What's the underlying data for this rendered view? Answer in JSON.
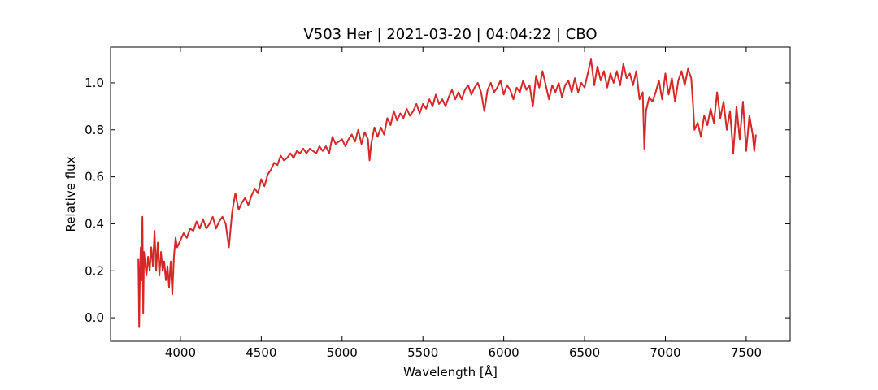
{
  "chart_data": {
    "type": "line",
    "title": "V503 Her | 2021-03-20 | 04:04:22 | CBO",
    "x_label": "Wavelength [Å]",
    "y_label": "Relative flux",
    "xlim": [
      3568,
      7772
    ],
    "ylim": [
      -0.1,
      1.152
    ],
    "xticks": [
      4000,
      4500,
      5000,
      5500,
      6000,
      6500,
      7000,
      7500
    ],
    "yticks": [
      {
        "value": 0,
        "label": "0.0"
      },
      {
        "value": 0.2,
        "label": "0.2"
      },
      {
        "value": 0.4,
        "label": "0.4"
      },
      {
        "value": 0.6,
        "label": "0.6"
      },
      {
        "value": 0.8,
        "label": "0.8"
      },
      {
        "value": 1,
        "label": "1.0"
      }
    ],
    "grid": false,
    "series": [
      {
        "color": "#d62728",
        "x": [
          3740,
          3745,
          3750,
          3755,
          3760,
          3765,
          3770,
          3775,
          3790,
          3800,
          3810,
          3820,
          3830,
          3840,
          3850,
          3860,
          3870,
          3880,
          3890,
          3900,
          3910,
          3920,
          3930,
          3940,
          3950,
          3960,
          3970,
          3980,
          4000,
          4020,
          4040,
          4060,
          4080,
          4100,
          4120,
          4140,
          4160,
          4180,
          4200,
          4220,
          4240,
          4260,
          4280,
          4300,
          4320,
          4340,
          4360,
          4380,
          4400,
          4420,
          4440,
          4460,
          4480,
          4500,
          4520,
          4540,
          4560,
          4580,
          4600,
          4620,
          4640,
          4660,
          4680,
          4700,
          4720,
          4740,
          4760,
          4780,
          4800,
          4820,
          4840,
          4860,
          4880,
          4900,
          4920,
          4940,
          4960,
          4980,
          5000,
          5020,
          5040,
          5060,
          5080,
          5100,
          5120,
          5140,
          5160,
          5170,
          5180,
          5200,
          5220,
          5240,
          5260,
          5280,
          5300,
          5320,
          5340,
          5360,
          5380,
          5400,
          5420,
          5440,
          5460,
          5480,
          5500,
          5520,
          5540,
          5560,
          5580,
          5600,
          5620,
          5640,
          5660,
          5680,
          5700,
          5720,
          5740,
          5760,
          5780,
          5800,
          5820,
          5840,
          5860,
          5880,
          5900,
          5920,
          5940,
          5960,
          5980,
          6000,
          6020,
          6040,
          6060,
          6080,
          6100,
          6120,
          6140,
          6160,
          6180,
          6200,
          6220,
          6240,
          6260,
          6280,
          6300,
          6320,
          6340,
          6360,
          6380,
          6400,
          6420,
          6440,
          6460,
          6480,
          6500,
          6520,
          6540,
          6560,
          6580,
          6600,
          6620,
          6640,
          6660,
          6680,
          6700,
          6720,
          6740,
          6760,
          6780,
          6800,
          6820,
          6840,
          6860,
          6870,
          6880,
          6900,
          6920,
          6940,
          6960,
          6980,
          7000,
          7020,
          7040,
          7060,
          7080,
          7100,
          7120,
          7140,
          7160,
          7170,
          7180,
          7200,
          7220,
          7240,
          7260,
          7280,
          7300,
          7320,
          7340,
          7360,
          7380,
          7400,
          7420,
          7440,
          7460,
          7480,
          7500,
          7520,
          7540,
          7550,
          7560
        ],
        "values": [
          0.25,
          -0.04,
          0.2,
          0.3,
          0.16,
          0.43,
          0.02,
          0.28,
          0.18,
          0.26,
          0.2,
          0.3,
          0.22,
          0.37,
          0.2,
          0.32,
          0.18,
          0.28,
          0.2,
          0.24,
          0.16,
          0.22,
          0.13,
          0.24,
          0.1,
          0.26,
          0.34,
          0.3,
          0.33,
          0.36,
          0.34,
          0.38,
          0.37,
          0.41,
          0.38,
          0.42,
          0.38,
          0.4,
          0.43,
          0.38,
          0.41,
          0.43,
          0.4,
          0.3,
          0.45,
          0.53,
          0.46,
          0.49,
          0.51,
          0.48,
          0.52,
          0.55,
          0.53,
          0.59,
          0.56,
          0.61,
          0.63,
          0.66,
          0.65,
          0.69,
          0.67,
          0.68,
          0.7,
          0.68,
          0.71,
          0.7,
          0.72,
          0.7,
          0.72,
          0.71,
          0.7,
          0.73,
          0.71,
          0.73,
          0.7,
          0.77,
          0.74,
          0.75,
          0.76,
          0.73,
          0.76,
          0.78,
          0.75,
          0.8,
          0.74,
          0.79,
          0.76,
          0.67,
          0.74,
          0.81,
          0.77,
          0.81,
          0.78,
          0.85,
          0.82,
          0.88,
          0.84,
          0.87,
          0.85,
          0.89,
          0.86,
          0.88,
          0.91,
          0.87,
          0.91,
          0.89,
          0.93,
          0.9,
          0.95,
          0.91,
          0.93,
          0.9,
          0.94,
          0.97,
          0.93,
          0.96,
          0.93,
          0.97,
          0.99,
          0.95,
          0.98,
          1.0,
          0.96,
          0.88,
          0.97,
          1.0,
          0.96,
          0.98,
          1.01,
          0.95,
          0.99,
          0.97,
          0.93,
          0.98,
          0.96,
          1.01,
          0.97,
          0.99,
          0.9,
          1.03,
          0.98,
          1.05,
          0.99,
          0.93,
          0.99,
          0.96,
          1.0,
          0.94,
          0.99,
          1.01,
          0.96,
          1.02,
          0.96,
          1.0,
          0.98,
          1.04,
          1.1,
          0.99,
          1.07,
          1.01,
          1.05,
          0.98,
          1.04,
          1.0,
          1.05,
          0.99,
          1.08,
          1.02,
          1.04,
          0.99,
          1.05,
          0.93,
          0.96,
          0.72,
          0.88,
          0.94,
          0.92,
          0.96,
          1.01,
          0.93,
          1.04,
          0.95,
          1.02,
          0.92,
          1.01,
          1.05,
          0.99,
          1.06,
          1.02,
          0.92,
          0.8,
          0.83,
          0.77,
          0.86,
          0.82,
          0.89,
          0.83,
          0.96,
          0.85,
          0.92,
          0.8,
          0.88,
          0.7,
          0.9,
          0.76,
          0.92,
          0.71,
          0.86,
          0.78,
          0.71,
          0.78
        ]
      }
    ]
  }
}
